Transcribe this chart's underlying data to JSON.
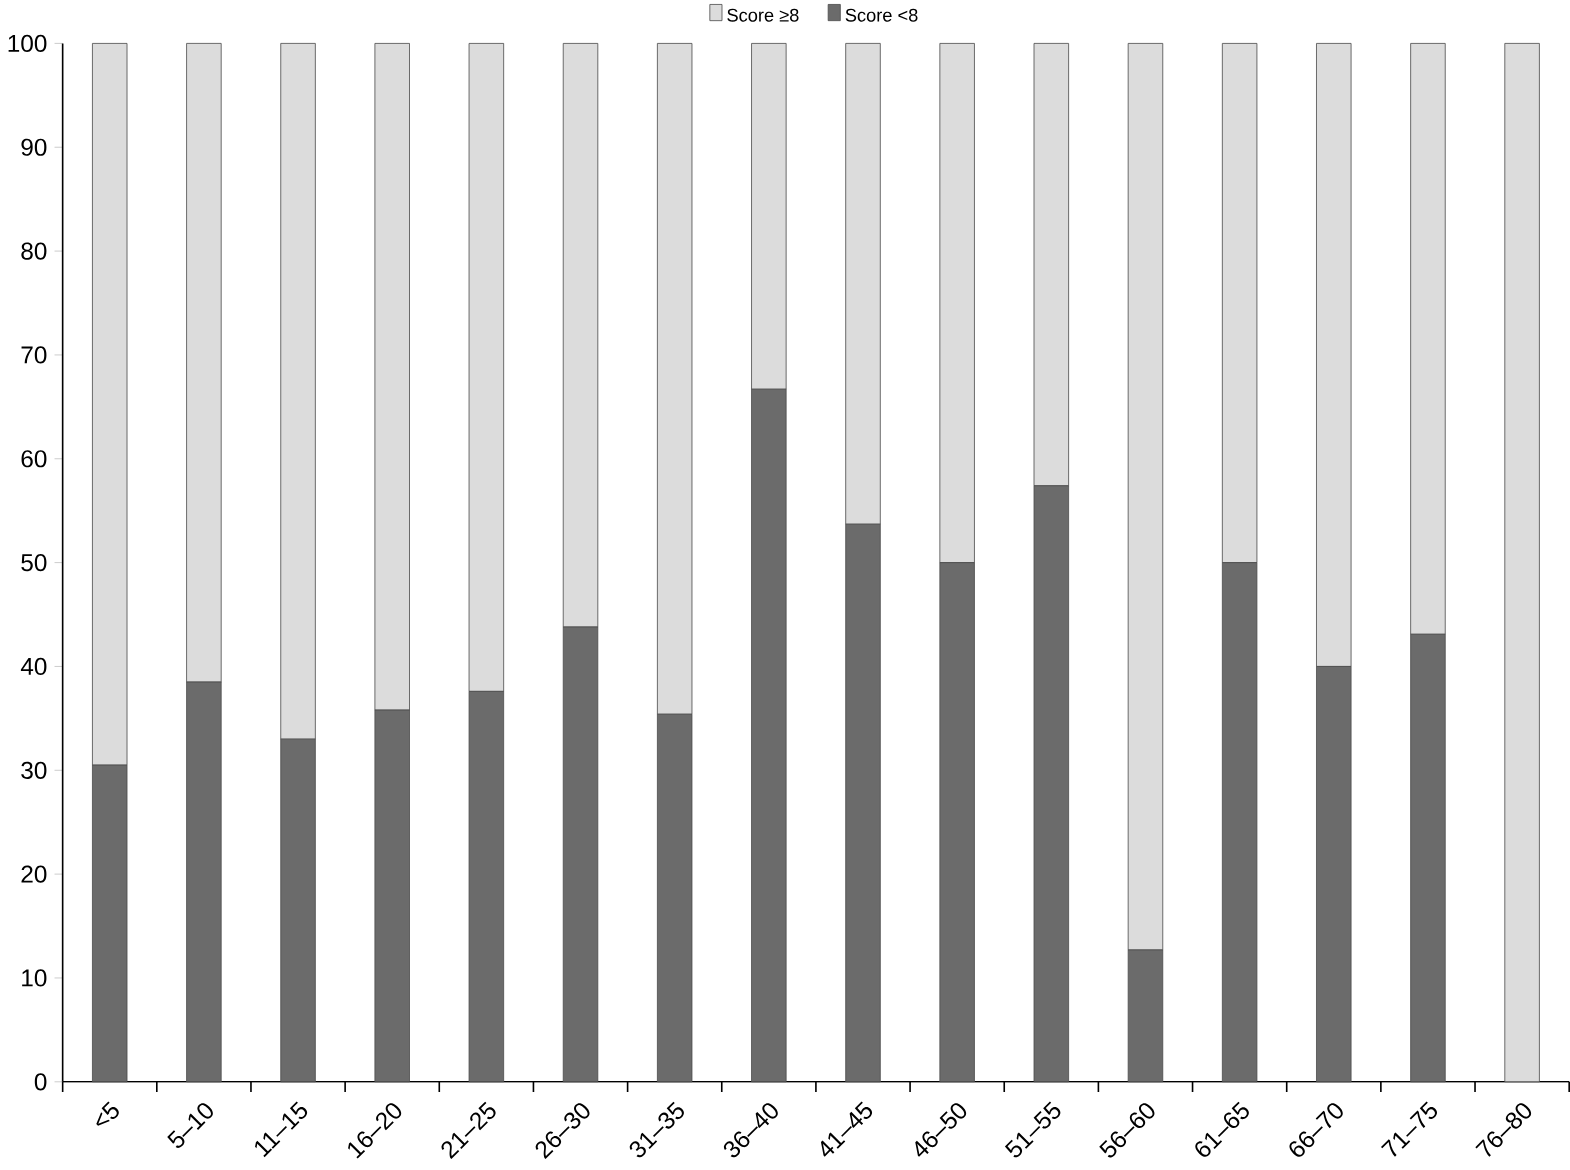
{
  "chart_data": {
    "type": "bar",
    "stacked": true,
    "categories": [
      "<5",
      "5–10",
      "11–15",
      "16–20",
      "21–25",
      "26–30",
      "31–35",
      "36–40",
      "41–45",
      "46–50",
      "51–55",
      "56–60",
      "61–65",
      "66–70",
      "71–75",
      "76–80"
    ],
    "series": [
      {
        "name": "Score <8",
        "color": "#6b6b6b",
        "values": [
          30.5,
          38.5,
          33,
          35.8,
          37.6,
          43.8,
          35.4,
          66.7,
          53.7,
          50,
          57.4,
          12.7,
          50,
          40,
          43.1,
          0
        ]
      },
      {
        "name": "Score ≥8",
        "color": "#dcdcdc",
        "values": [
          69.5,
          61.5,
          67,
          64.2,
          62.4,
          56.2,
          64.6,
          33.3,
          46.3,
          50,
          42.6,
          87.3,
          50,
          60,
          56.9,
          100
        ]
      }
    ],
    "ylim": [
      0,
      100
    ],
    "yticks": [
      0,
      10,
      20,
      30,
      40,
      50,
      60,
      70,
      80,
      90,
      100
    ],
    "grid": false,
    "legend": "top"
  }
}
